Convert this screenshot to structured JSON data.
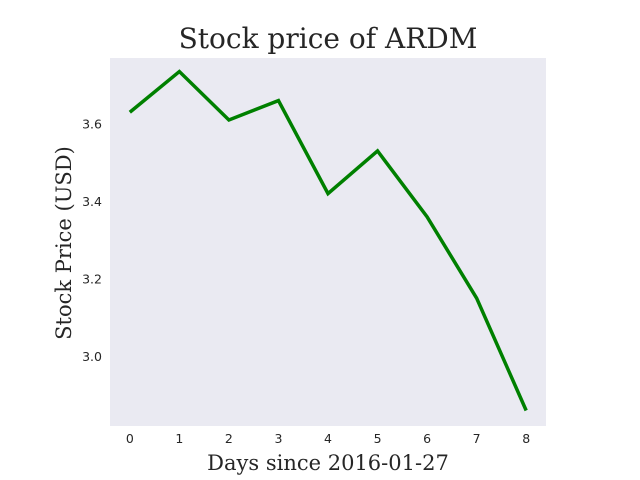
{
  "chart_data": {
    "type": "line",
    "title": "Stock price of ARDM",
    "xlabel": "Days since 2016-01-27",
    "ylabel": "Stock Price (USD)",
    "x": [
      0,
      1,
      2,
      3,
      4,
      5,
      6,
      7,
      8
    ],
    "series": [
      {
        "values": [
          3.63,
          3.735,
          3.61,
          3.66,
          3.42,
          3.53,
          3.36,
          3.15,
          2.86
        ],
        "color": "#008000"
      }
    ],
    "xlim": [
      -0.4,
      8.4
    ],
    "ylim": [
      2.82,
      3.77
    ],
    "xticks": [
      0,
      1,
      2,
      3,
      4,
      5,
      6,
      7,
      8
    ],
    "xtick_labels": [
      "0",
      "1",
      "2",
      "3",
      "4",
      "5",
      "6",
      "7",
      "8"
    ],
    "yticks": [
      3.0,
      3.2,
      3.4,
      3.6
    ],
    "ytick_labels": [
      "3.0",
      "3.2",
      "3.4",
      "3.6"
    ],
    "grid": false,
    "background_color": "#eaeaf2"
  }
}
